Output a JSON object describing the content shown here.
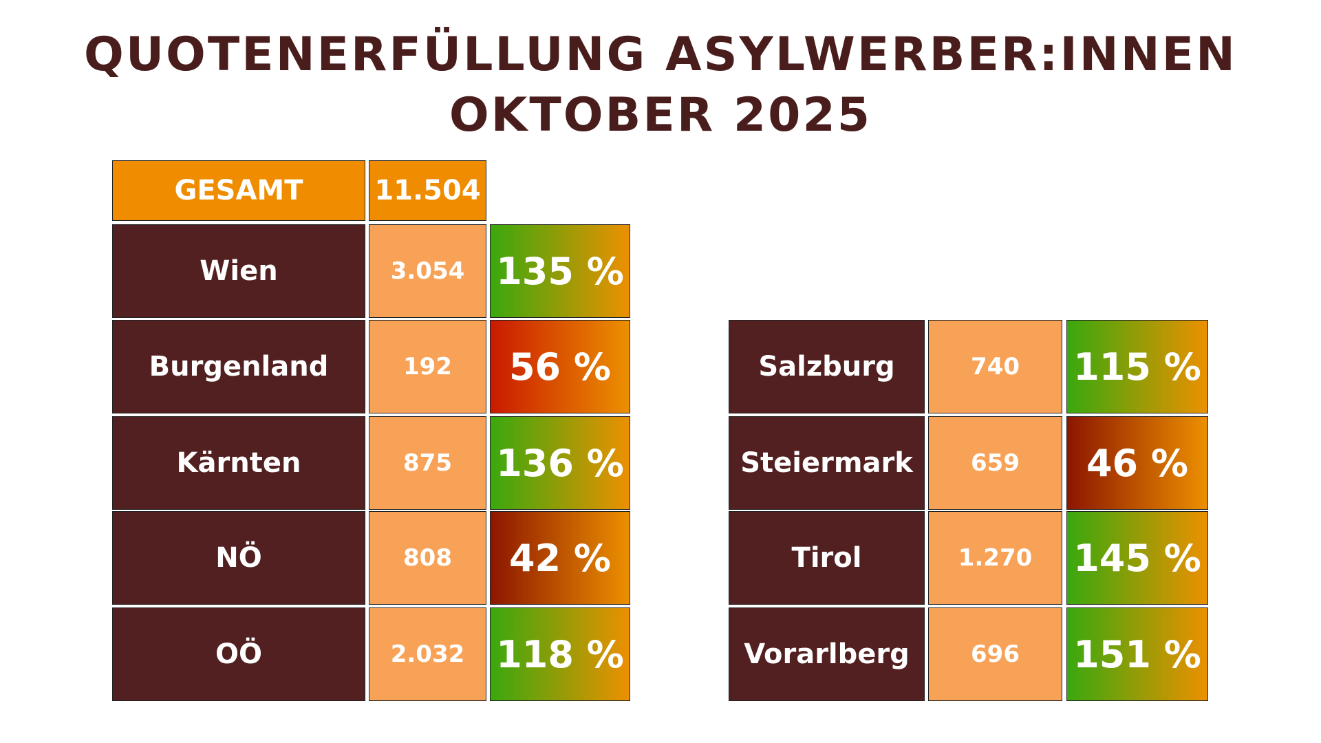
{
  "header": {
    "title_line1": "QUOTENERFÜLLUNG ASYLWERBER:INNEN",
    "title_line2": "OKTOBER 2025"
  },
  "total": {
    "label": "GESAMT",
    "value": "11.504"
  },
  "left_table": {
    "rows": [
      {
        "region": "Wien",
        "count": "3.054",
        "quota": "135 %",
        "color": "#3aa80e"
      },
      {
        "region": "Burgenland",
        "count": "192",
        "quota": "56 %",
        "color": "#c91a00"
      },
      {
        "region": "Kärnten",
        "count": "875",
        "quota": "136 %",
        "color": "#3aa80e"
      },
      {
        "region": "NÖ",
        "count": "808",
        "quota": "42 %",
        "color": "#8c1600"
      },
      {
        "region": "OÖ",
        "count": "2.032",
        "quota": "118 %",
        "color": "#3aa80e"
      }
    ]
  },
  "right_table": {
    "rows": [
      {
        "region": "Salzburg",
        "count": "740",
        "quota": "115 %",
        "color": "#3aa80e"
      },
      {
        "region": "Steiermark",
        "count": "659",
        "quota": "46 %",
        "color": "#8c1600"
      },
      {
        "region": "Tirol",
        "count": "1.270",
        "quota": "145 %",
        "color": "#3aa80e"
      },
      {
        "region": "Vorarlberg",
        "count": "696",
        "quota": "151 %",
        "color": "#3aa80e"
      }
    ]
  }
}
